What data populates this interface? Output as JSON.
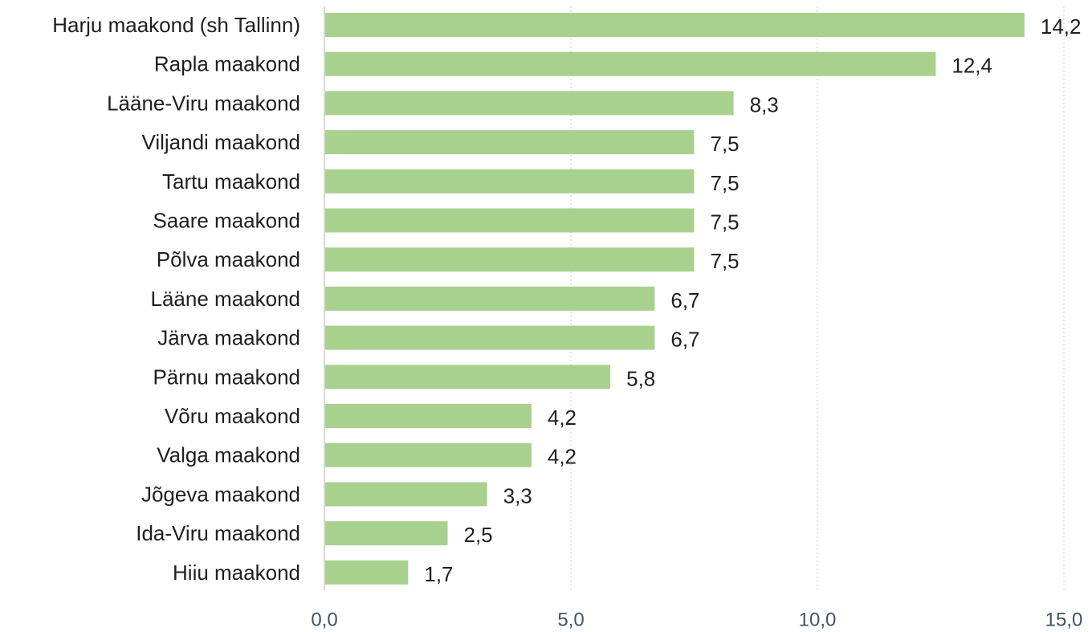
{
  "chart_data": {
    "type": "bar",
    "orientation": "horizontal",
    "title": "",
    "xlabel": "",
    "ylabel": "",
    "categories": [
      "Harju maakond (sh Tallinn)",
      "Rapla maakond",
      "Lääne-Viru maakond",
      "Viljandi maakond",
      "Tartu maakond",
      "Saare maakond",
      "Põlva maakond",
      "Lääne maakond",
      "Järva maakond",
      "Pärnu maakond",
      "Võru maakond",
      "Valga maakond",
      "Jõgeva maakond",
      "Ida-Viru maakond",
      "Hiiu maakond"
    ],
    "values": [
      14.2,
      12.4,
      8.3,
      7.5,
      7.5,
      7.5,
      7.5,
      6.7,
      6.7,
      5.8,
      4.2,
      4.2,
      3.3,
      2.5,
      1.7
    ],
    "value_labels": [
      "14,2",
      "12,4",
      "8,3",
      "7,5",
      "7,5",
      "7,5",
      "7,5",
      "6,7",
      "6,7",
      "5,8",
      "4,2",
      "4,2",
      "3,3",
      "2,5",
      "1,7"
    ],
    "xlim": [
      0,
      15
    ],
    "xticks": [
      0,
      5,
      10,
      15
    ],
    "xtick_labels": [
      "0,0",
      "5,0",
      "10,0",
      "15,0"
    ],
    "grid": true,
    "legend": "none",
    "colors": {
      "bar": "#a9d18e",
      "text": "#1f1f1f",
      "tick_text": "#44546a",
      "grid": "#d9d9d9",
      "axis": "#bfbfbf"
    }
  }
}
